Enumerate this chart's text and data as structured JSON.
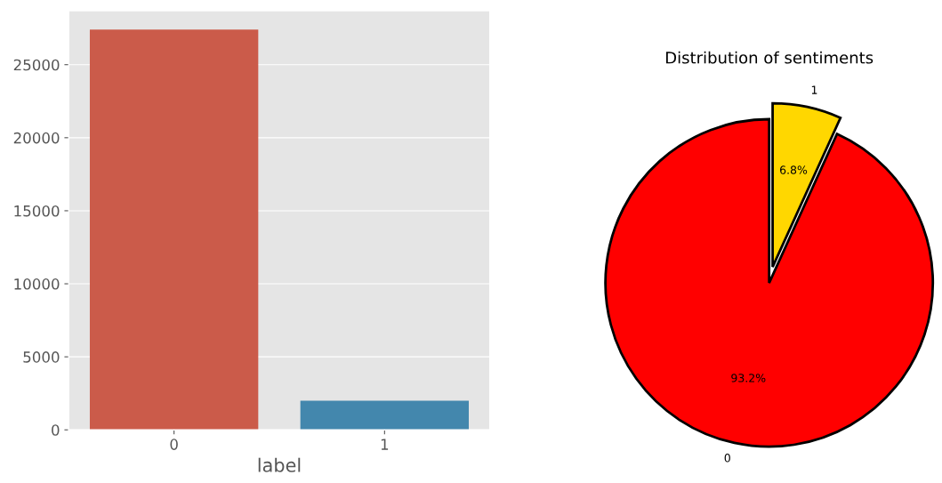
{
  "chart_data": [
    {
      "type": "bar",
      "xlabel": "label",
      "categories": [
        "0",
        "1"
      ],
      "values": [
        27400,
        2000
      ],
      "colors": [
        "#cb5b4a",
        "#4387ad"
      ],
      "ylim": [
        0,
        28700
      ],
      "yticks": [
        0,
        5000,
        10000,
        15000,
        20000,
        25000
      ],
      "grid": "y"
    },
    {
      "type": "pie",
      "title": "Distribution of sentiments",
      "categories": [
        "0",
        "1"
      ],
      "values": [
        93.2,
        6.8
      ],
      "colors": [
        "#ff0000",
        "#ffd700"
      ],
      "value_labels": [
        "93.2%",
        "6.8%"
      ]
    }
  ]
}
